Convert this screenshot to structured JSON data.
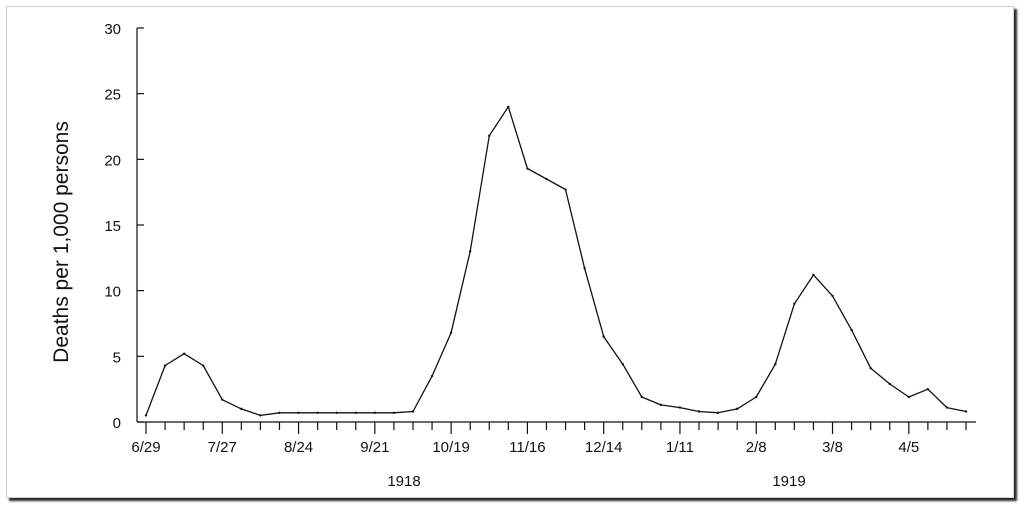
{
  "chart_data": {
    "type": "line",
    "title": "",
    "xlabel": "",
    "ylabel": "Deaths per 1,000 persons",
    "ylim": [
      0,
      30
    ],
    "yticks": [
      0,
      5,
      10,
      15,
      20,
      25,
      30
    ],
    "x_tick_labels": [
      "6/29",
      "7/27",
      "8/24",
      "9/21",
      "10/19",
      "11/16",
      "12/14",
      "1/11",
      "2/8",
      "3/8",
      "4/5"
    ],
    "year_labels": [
      "1918",
      "1919"
    ],
    "x_start": "1918-06-29",
    "x_week_step": 1,
    "grid": false,
    "series": [
      {
        "values": [
          0.5,
          4.3,
          5.2,
          4.3,
          1.7,
          1.0,
          0.5,
          0.7,
          0.7,
          0.7,
          0.7,
          0.7,
          0.7,
          0.7,
          0.8,
          3.5,
          6.8,
          13.0,
          21.8,
          24.0,
          19.3,
          18.5,
          17.7,
          11.7,
          6.5,
          4.4,
          1.9,
          1.3,
          1.1,
          0.8,
          0.7,
          1.0,
          1.9,
          4.4,
          9.0,
          11.2,
          9.6,
          7.0,
          4.1,
          2.9,
          1.9,
          2.5,
          1.1,
          0.8
        ]
      }
    ]
  }
}
